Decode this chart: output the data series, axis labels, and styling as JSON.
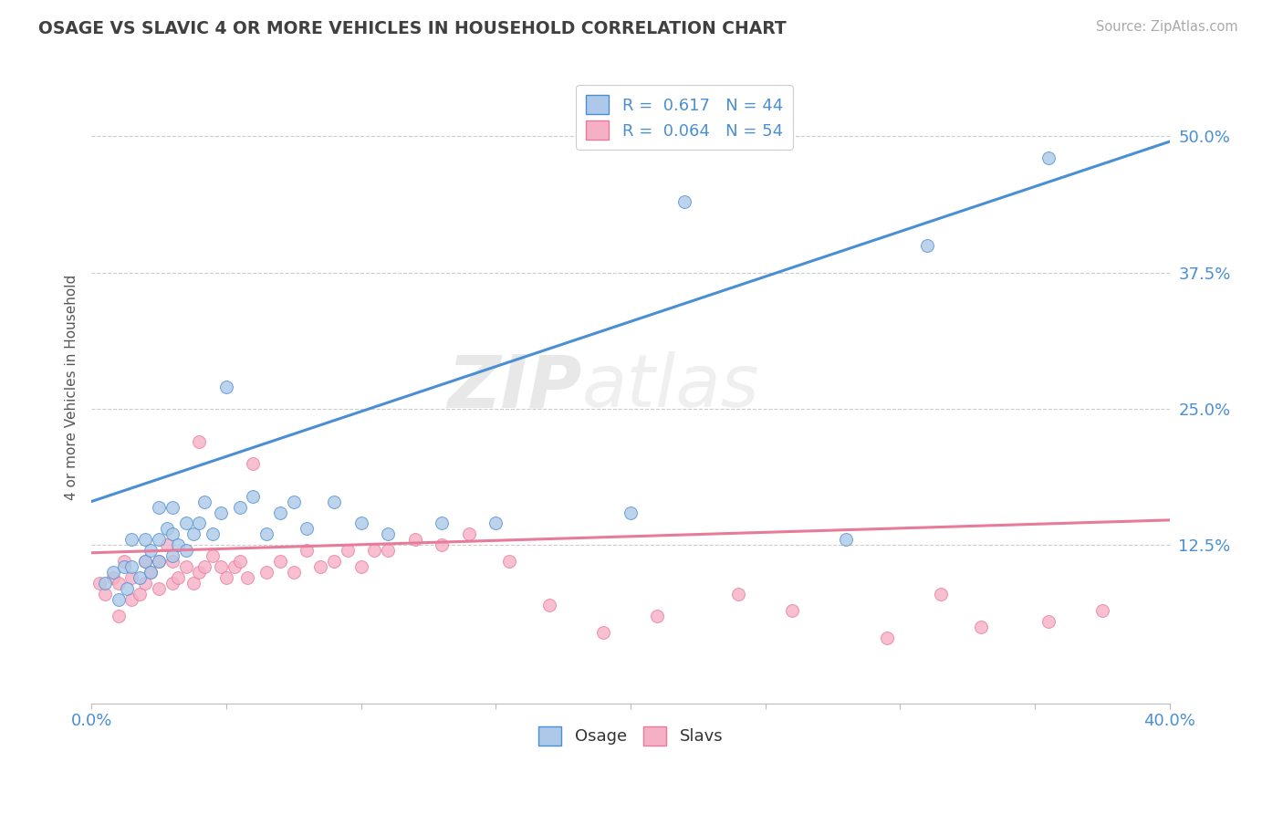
{
  "title": "OSAGE VS SLAVIC 4 OR MORE VEHICLES IN HOUSEHOLD CORRELATION CHART",
  "source_text": "Source: ZipAtlas.com",
  "ylabel": "4 or more Vehicles in Household",
  "xlim": [
    0.0,
    0.4
  ],
  "ylim": [
    -0.02,
    0.56
  ],
  "xtick_positions": [
    0.0,
    0.05,
    0.1,
    0.15,
    0.2,
    0.25,
    0.3,
    0.35,
    0.4
  ],
  "xticklabels": [
    "0.0%",
    "",
    "",
    "",
    "",
    "",
    "",
    "",
    "40.0%"
  ],
  "ytick_positions": [
    0.125,
    0.25,
    0.375,
    0.5
  ],
  "ytick_labels": [
    "12.5%",
    "25.0%",
    "37.5%",
    "50.0%"
  ],
  "legend_labels": [
    "Osage",
    "Slavs"
  ],
  "osage_R": 0.617,
  "osage_N": 44,
  "slavic_R": 0.064,
  "slavic_N": 54,
  "osage_color": "#adc8e8",
  "slavic_color": "#f5b0c5",
  "osage_line_color": "#4a8fd4",
  "slavic_line_color": "#e87a9a",
  "watermark_zip": "ZIP",
  "watermark_atlas": "atlas",
  "background_color": "#ffffff",
  "grid_color": "#cccccc",
  "title_color": "#404040",
  "axis_label_color": "#4a8fd4",
  "tick_label_color": "#4a8fd4",
  "ylabel_color": "#555555",
  "osage_line_x": [
    0.0,
    0.4
  ],
  "osage_line_y": [
    0.165,
    0.495
  ],
  "slavic_line_x": [
    0.0,
    0.4
  ],
  "slavic_line_y": [
    0.118,
    0.148
  ],
  "osage_scatter_x": [
    0.005,
    0.008,
    0.01,
    0.012,
    0.013,
    0.015,
    0.015,
    0.018,
    0.02,
    0.02,
    0.022,
    0.022,
    0.025,
    0.025,
    0.025,
    0.028,
    0.03,
    0.03,
    0.03,
    0.032,
    0.035,
    0.035,
    0.038,
    0.04,
    0.042,
    0.045,
    0.048,
    0.05,
    0.055,
    0.06,
    0.065,
    0.07,
    0.075,
    0.08,
    0.09,
    0.1,
    0.11,
    0.13,
    0.15,
    0.2,
    0.22,
    0.28,
    0.31,
    0.355
  ],
  "osage_scatter_y": [
    0.09,
    0.1,
    0.075,
    0.105,
    0.085,
    0.105,
    0.13,
    0.095,
    0.11,
    0.13,
    0.1,
    0.12,
    0.11,
    0.13,
    0.16,
    0.14,
    0.115,
    0.135,
    0.16,
    0.125,
    0.12,
    0.145,
    0.135,
    0.145,
    0.165,
    0.135,
    0.155,
    0.27,
    0.16,
    0.17,
    0.135,
    0.155,
    0.165,
    0.14,
    0.165,
    0.145,
    0.135,
    0.145,
    0.145,
    0.155,
    0.44,
    0.13,
    0.4,
    0.48
  ],
  "slavic_scatter_x": [
    0.003,
    0.005,
    0.008,
    0.01,
    0.01,
    0.012,
    0.015,
    0.015,
    0.018,
    0.02,
    0.02,
    0.022,
    0.025,
    0.025,
    0.028,
    0.03,
    0.03,
    0.032,
    0.035,
    0.038,
    0.04,
    0.04,
    0.042,
    0.045,
    0.048,
    0.05,
    0.053,
    0.055,
    0.058,
    0.06,
    0.065,
    0.07,
    0.075,
    0.08,
    0.085,
    0.09,
    0.095,
    0.1,
    0.105,
    0.11,
    0.12,
    0.13,
    0.14,
    0.155,
    0.17,
    0.19,
    0.21,
    0.24,
    0.26,
    0.295,
    0.315,
    0.33,
    0.355,
    0.375
  ],
  "slavic_scatter_y": [
    0.09,
    0.08,
    0.095,
    0.06,
    0.09,
    0.11,
    0.075,
    0.095,
    0.08,
    0.09,
    0.11,
    0.1,
    0.085,
    0.11,
    0.125,
    0.09,
    0.11,
    0.095,
    0.105,
    0.09,
    0.1,
    0.22,
    0.105,
    0.115,
    0.105,
    0.095,
    0.105,
    0.11,
    0.095,
    0.2,
    0.1,
    0.11,
    0.1,
    0.12,
    0.105,
    0.11,
    0.12,
    0.105,
    0.12,
    0.12,
    0.13,
    0.125,
    0.135,
    0.11,
    0.07,
    0.045,
    0.06,
    0.08,
    0.065,
    0.04,
    0.08,
    0.05,
    0.055,
    0.065
  ]
}
